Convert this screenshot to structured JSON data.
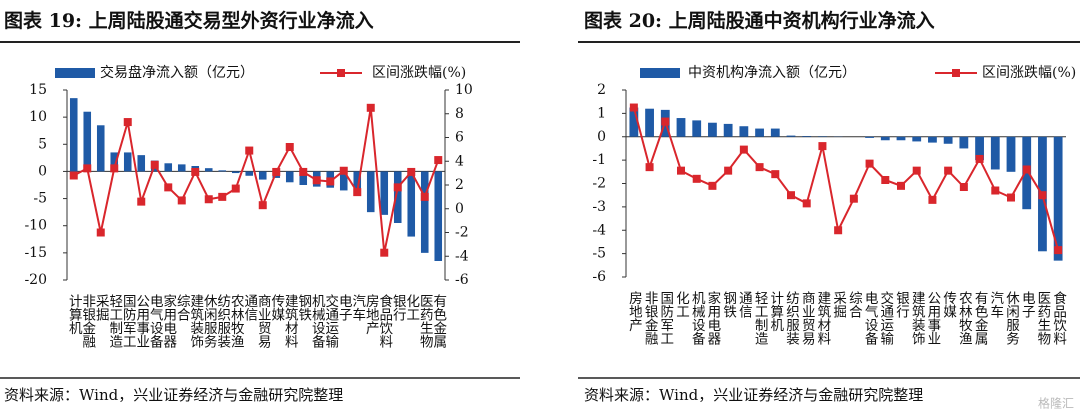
{
  "chart_data": [
    {
      "type": "bar-line",
      "title": "图表 19:  上周陆股通交易型外资行业净流入",
      "categories": [
        "计算机",
        "非银金融",
        "采掘",
        "轻工制造",
        "国防军工",
        "公用事业",
        "电气设备",
        "家用电器",
        "综合",
        "建筑装饰",
        "休闲服务",
        "纺织服装",
        "农林牧渔",
        "通信",
        "商业贸易",
        "传媒",
        "建筑材料",
        "钢铁",
        "机械设备",
        "交通运输",
        "电子",
        "汽车",
        "房地产",
        "食品饮料",
        "银行",
        "化工",
        "医药生物",
        "有色金属"
      ],
      "series": [
        {
          "name": "交易盘净流入额（亿元）",
          "type": "bar",
          "color": "#1f5aa6",
          "values": [
            13.5,
            11,
            8.5,
            3.5,
            3.5,
            3,
            2,
            1.5,
            1.3,
            1,
            0.6,
            0.2,
            -0.3,
            -0.8,
            -1.5,
            -1.2,
            -2,
            -2.5,
            -2.8,
            -3,
            -3.5,
            -4.5,
            -7.5,
            -8,
            -9.5,
            -12,
            -15,
            -16.5
          ]
        },
        {
          "name": "区间涨跌幅(%)",
          "type": "line",
          "axis": "y2",
          "color": "#d9262c",
          "values": [
            2.8,
            3.4,
            -2,
            3.4,
            7.3,
            0.6,
            3.7,
            1.8,
            0.7,
            3.1,
            0.8,
            1.0,
            1.7,
            4.9,
            0.3,
            3.1,
            5.2,
            3.1,
            2.4,
            2.3,
            3.2,
            1.4,
            8.5,
            -3.7,
            1.8,
            3.1,
            1.0,
            4.1
          ]
        }
      ],
      "ylim": [
        -20,
        15
      ],
      "yticks": [
        -20,
        -15,
        -10,
        -5,
        0,
        5,
        10,
        15
      ],
      "y2lim": [
        -6,
        10
      ],
      "y2ticks": [
        -6,
        -4,
        -2,
        0,
        2,
        4,
        6,
        8,
        10
      ],
      "source": "资料来源：Wind，兴业证券经济与金融研究院整理"
    },
    {
      "type": "bar-line",
      "title": "图表 20:  上周陆股通中资机构行业净流入",
      "categories": [
        "房地产",
        "非银金融",
        "国防军工",
        "化工",
        "机械设备",
        "家用电器",
        "钢铁",
        "通信",
        "轻工制造",
        "计算机",
        "纺织服装",
        "商业贸易",
        "建筑材料",
        "采掘",
        "综合",
        "电气设备",
        "交通运输",
        "银行",
        "建筑装饰",
        "公用事业",
        "传媒",
        "农林牧渔",
        "有色金属",
        "汽车",
        "休闲服务",
        "电子",
        "医药生物",
        "食品饮料"
      ],
      "series": [
        {
          "name": "中资机构净流入额（亿元）",
          "type": "bar",
          "color": "#1f5aa6",
          "values": [
            1.25,
            1.2,
            1.15,
            0.8,
            0.7,
            0.6,
            0.55,
            0.45,
            0.35,
            0.35,
            0.05,
            0.03,
            0.02,
            0.01,
            0,
            -0.05,
            -0.15,
            -0.15,
            -0.2,
            -0.25,
            -0.3,
            -0.5,
            -1.0,
            -1.4,
            -1.5,
            -3.1,
            -4.9,
            -5.3
          ]
        },
        {
          "name": "区间涨跌幅(%)",
          "type": "line",
          "axis": "y2",
          "color": "#d9262c",
          "values": [
            8.5,
            3.4,
            7.3,
            3.1,
            2.4,
            1.8,
            3.1,
            4.9,
            3.4,
            2.8,
            1.0,
            0.3,
            5.2,
            -2.0,
            0.7,
            3.7,
            2.3,
            1.8,
            3.1,
            0.6,
            3.1,
            1.7,
            4.1,
            1.4,
            0.8,
            3.2,
            1.0,
            -3.7
          ]
        }
      ],
      "ylim": [
        -6,
        2
      ],
      "yticks": [
        -6,
        -5,
        -4,
        -3,
        -2,
        -1,
        0,
        1,
        2
      ],
      "y2lim": [
        -6,
        10
      ],
      "source": "资料来源：Wind，兴业证券经济与金融研究院整理"
    }
  ],
  "watermark": "格隆汇"
}
